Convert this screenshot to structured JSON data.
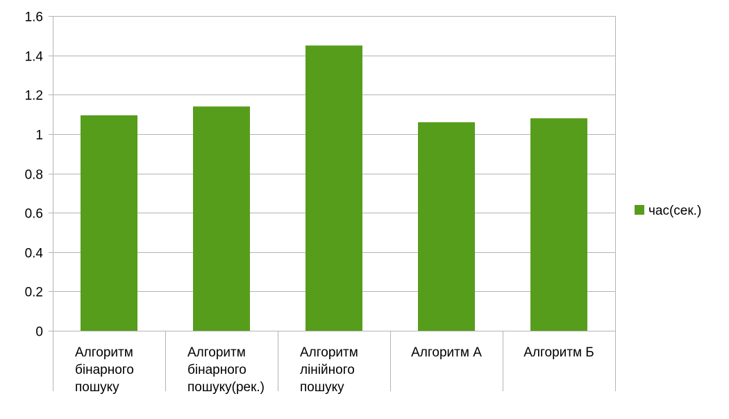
{
  "chart_data": {
    "type": "bar",
    "categories": [
      [
        "Алгоритм",
        "бінарного",
        "пошуку"
      ],
      [
        "Алгоритм",
        "бінарного",
        "пошуку(рек.)"
      ],
      [
        "Алгоритм",
        "лінійного",
        "пошуку"
      ],
      [
        "Алгоритм А"
      ],
      [
        "Алгоритм Б"
      ]
    ],
    "series": [
      {
        "name": "час(сек.)",
        "color": "#579d1c",
        "values": [
          1.095,
          1.14,
          1.45,
          1.06,
          1.08
        ]
      }
    ],
    "ylim": [
      0,
      1.6
    ],
    "yticks": [
      "0",
      "0.2",
      "0.4",
      "0.6",
      "0.8",
      "1",
      "1.2",
      "1.4",
      "1.6"
    ],
    "grid": true,
    "legend": "right"
  }
}
